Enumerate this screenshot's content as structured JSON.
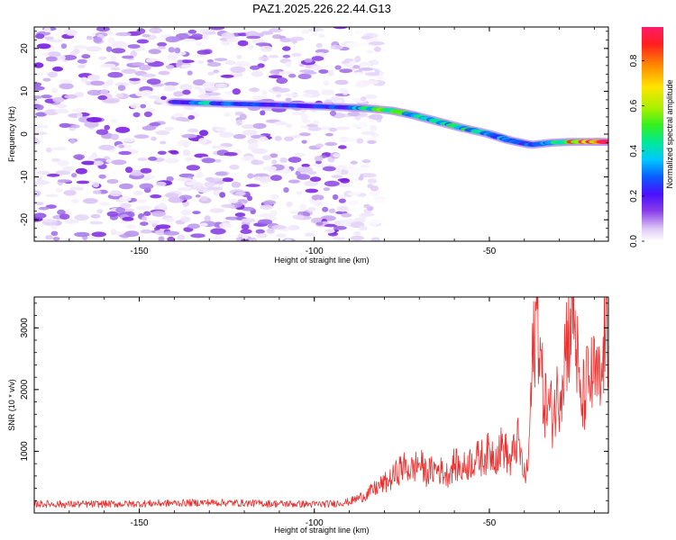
{
  "title": "PAZ1.2025.226.22.44.G13",
  "colors": {
    "snr_line": "#e8312f",
    "colormap": [
      "#ffffff",
      "#dcc6f5",
      "#a070e8",
      "#7a1ee0",
      "#3a14ff",
      "#0a60ff",
      "#00c8ff",
      "#00e8a0",
      "#30f020",
      "#a8f000",
      "#ffe800",
      "#ff9a00",
      "#ff2a10",
      "#ff1a6a"
    ]
  },
  "chart_data": [
    {
      "type": "heatmap",
      "xlabel": "Height of straight line (km)",
      "ylabel": "Frequency (Hz)",
      "xlim": [
        -180,
        -16
      ],
      "ylim": [
        -25,
        25
      ],
      "x_ticks": [
        "-150",
        "-100",
        "-50"
      ],
      "y_ticks": [
        "-20",
        "-10",
        "0",
        "10",
        "20"
      ],
      "colorbar": {
        "label": "Normalized spectral amplitude",
        "range": [
          0.0,
          0.95
        ],
        "ticks": [
          "0.0",
          "0.2",
          "0.4",
          "0.6",
          "0.8"
        ]
      },
      "noise_region_x": [
        -180,
        -85
      ],
      "signal_ridge": [
        {
          "x": -140,
          "freq": 7.5,
          "amp": 0.25
        },
        {
          "x": -130,
          "freq": 7.2,
          "amp": 0.45
        },
        {
          "x": -120,
          "freq": 7.0,
          "amp": 0.35
        },
        {
          "x": -110,
          "freq": 6.8,
          "amp": 0.3
        },
        {
          "x": -100,
          "freq": 6.5,
          "amp": 0.3
        },
        {
          "x": -90,
          "freq": 6.2,
          "amp": 0.35
        },
        {
          "x": -85,
          "freq": 6.0,
          "amp": 0.5
        },
        {
          "x": -78,
          "freq": 5.5,
          "amp": 0.6
        },
        {
          "x": -72,
          "freq": 4.5,
          "amp": 0.5
        },
        {
          "x": -65,
          "freq": 3.0,
          "amp": 0.45
        },
        {
          "x": -58,
          "freq": 1.5,
          "amp": 0.5
        },
        {
          "x": -50,
          "freq": 0.0,
          "amp": 0.45
        },
        {
          "x": -44,
          "freq": -1.5,
          "amp": 0.4
        },
        {
          "x": -38,
          "freq": -2.5,
          "amp": 0.35
        },
        {
          "x": -32,
          "freq": -2.0,
          "amp": 0.45
        },
        {
          "x": -26,
          "freq": -1.8,
          "amp": 0.8
        },
        {
          "x": -20,
          "freq": -1.8,
          "amp": 0.9
        },
        {
          "x": -16,
          "freq": -1.8,
          "amp": 0.85
        }
      ]
    },
    {
      "type": "line",
      "xlabel": "Height of straight line (km)",
      "ylabel": "SNR (10 * v/v)",
      "xlim": [
        -180,
        -16
      ],
      "ylim": [
        0,
        3500
      ],
      "x_ticks": [
        "-150",
        "-100",
        "-50"
      ],
      "y_ticks": [
        "1000",
        "2000",
        "3000"
      ],
      "series": [
        {
          "x": [
            -180,
            -170,
            -160,
            -150,
            -140,
            -130,
            -120,
            -110,
            -100,
            -95,
            -90,
            -85,
            -82,
            -80,
            -78,
            -75,
            -72,
            -70,
            -68,
            -65,
            -62,
            -60,
            -58,
            -55,
            -52,
            -50,
            -48,
            -46,
            -44,
            -42,
            -40,
            -39,
            -38,
            -37,
            -36,
            -35,
            -34,
            -32,
            -30,
            -28,
            -26,
            -25,
            -24,
            -22,
            -20,
            -18,
            -17,
            -16
          ],
          "y": [
            150,
            140,
            145,
            150,
            160,
            170,
            160,
            150,
            140,
            150,
            180,
            300,
            420,
            480,
            550,
            750,
            700,
            820,
            650,
            720,
            620,
            800,
            700,
            850,
            900,
            980,
            950,
            1100,
            800,
            1200,
            600,
            700,
            2000,
            3000,
            3200,
            2100,
            1800,
            1600,
            2000,
            2800,
            3400,
            2600,
            1700,
            2100,
            2200,
            2000,
            3000,
            2400
          ]
        }
      ]
    }
  ]
}
